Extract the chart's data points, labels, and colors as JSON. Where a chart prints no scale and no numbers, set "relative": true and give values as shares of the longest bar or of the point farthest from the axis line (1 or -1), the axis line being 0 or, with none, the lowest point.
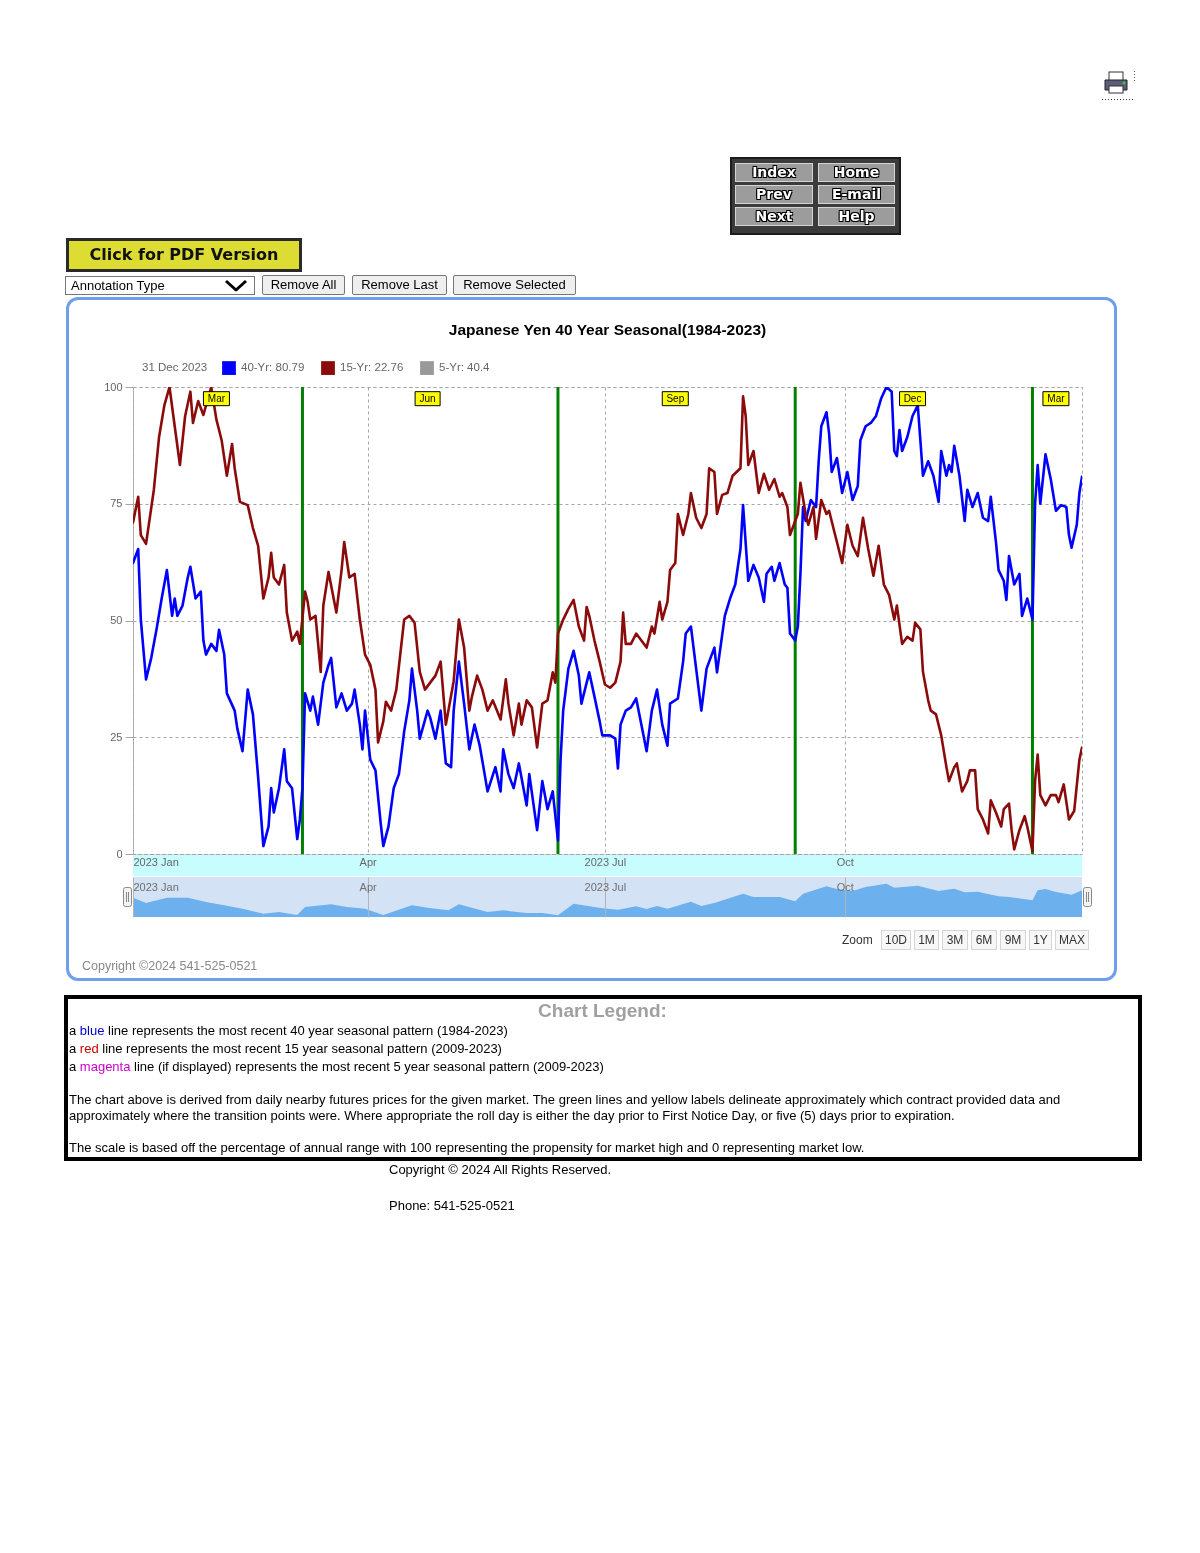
{
  "chart_data": [
    {
      "type": "line",
      "title": "Japanese Yen 40 Year Seasonal(1984-2023)",
      "legend_title": "31 Dec 2023",
      "legend": "top left",
      "series": [
        {
          "name": "40-Yr: 80.79",
          "color": "#0000ff",
          "x": [
            "2023-01-01",
            "2023-01-03",
            "2023-01-04",
            "2023-01-06",
            "2023-01-08",
            "2023-01-10",
            "2023-01-12",
            "2023-01-14",
            "2023-01-16",
            "2023-01-17",
            "2023-01-18",
            "2023-01-20",
            "2023-01-22",
            "2023-01-23",
            "2023-01-25",
            "2023-01-27",
            "2023-01-28",
            "2023-01-29",
            "2023-01-31",
            "2023-02-02",
            "2023-02-03",
            "2023-02-05",
            "2023-02-06",
            "2023-02-09",
            "2023-02-10",
            "2023-02-12",
            "2023-02-14",
            "2023-02-16",
            "2023-02-18",
            "2023-02-20",
            "2023-02-22",
            "2023-02-23",
            "2023-02-24",
            "2023-02-26",
            "2023-02-28",
            "2023-03-01",
            "2023-03-03",
            "2023-03-05",
            "2023-03-06",
            "2023-03-07",
            "2023-03-08",
            "2023-03-10",
            "2023-03-11",
            "2023-03-13",
            "2023-03-15",
            "2023-03-17",
            "2023-03-18",
            "2023-03-20",
            "2023-03-22",
            "2023-03-24",
            "2023-03-26",
            "2023-03-27",
            "2023-03-29",
            "2023-03-30",
            "2023-03-31",
            "2023-04-02",
            "2023-04-04",
            "2023-04-06",
            "2023-04-07",
            "2023-04-09",
            "2023-04-11",
            "2023-04-13",
            "2023-04-15",
            "2023-04-17",
            "2023-04-18",
            "2023-04-20",
            "2023-04-21",
            "2023-04-24",
            "2023-04-25",
            "2023-04-27",
            "2023-04-29",
            "2023-05-01",
            "2023-05-03",
            "2023-05-04",
            "2023-05-06",
            "2023-05-08",
            "2023-05-10",
            "2023-05-12",
            "2023-05-14",
            "2023-05-17",
            "2023-05-20",
            "2023-05-22",
            "2023-05-23",
            "2023-05-25",
            "2023-05-27",
            "2023-05-29",
            "2023-06-01",
            "2023-06-02",
            "2023-06-05",
            "2023-06-07",
            "2023-06-09",
            "2023-06-11",
            "2023-06-13",
            "2023-06-14",
            "2023-06-15",
            "2023-06-17",
            "2023-06-19",
            "2023-06-21",
            "2023-06-22",
            "2023-06-25",
            "2023-06-27",
            "2023-06-29",
            "2023-06-30",
            "2023-07-03",
            "2023-07-05",
            "2023-07-06",
            "2023-07-07",
            "2023-07-09",
            "2023-07-11",
            "2023-07-13",
            "2023-07-15",
            "2023-07-17",
            "2023-07-19",
            "2023-07-21",
            "2023-07-23",
            "2023-07-25",
            "2023-07-26",
            "2023-07-29",
            "2023-07-31",
            "2023-08-01",
            "2023-08-03",
            "2023-08-05",
            "2023-08-07",
            "2023-08-09",
            "2023-08-12",
            "2023-08-13",
            "2023-08-16",
            "2023-08-18",
            "2023-08-20",
            "2023-08-22",
            "2023-08-23",
            "2023-08-25",
            "2023-08-27",
            "2023-08-29",
            "2023-08-31",
            "2023-09-01",
            "2023-09-03",
            "2023-09-04",
            "2023-09-06",
            "2023-09-08",
            "2023-09-09",
            "2023-09-10",
            "2023-09-12",
            "2023-09-13",
            "2023-09-14",
            "2023-09-15",
            "2023-09-16",
            "2023-09-18",
            "2023-09-20",
            "2023-09-21",
            "2023-09-22",
            "2023-09-24",
            "2023-09-25",
            "2023-09-26",
            "2023-09-28",
            "2023-09-30",
            "2023-10-02",
            "2023-10-04",
            "2023-10-06",
            "2023-10-07",
            "2023-10-09",
            "2023-10-11",
            "2023-10-13",
            "2023-10-15",
            "2023-10-17",
            "2023-10-19",
            "2023-10-20",
            "2023-10-21",
            "2023-10-22",
            "2023-10-23",
            "2023-10-25",
            "2023-10-27",
            "2023-10-29",
            "2023-10-30",
            "2023-10-31",
            "2023-11-02",
            "2023-11-04",
            "2023-11-06",
            "2023-11-07",
            "2023-11-09",
            "2023-11-10",
            "2023-11-11",
            "2023-11-12",
            "2023-11-14",
            "2023-11-16",
            "2023-11-17",
            "2023-11-19",
            "2023-11-21",
            "2023-11-23",
            "2023-11-25",
            "2023-11-26",
            "2023-11-28",
            "2023-11-29",
            "2023-12-01",
            "2023-12-02",
            "2023-12-03",
            "2023-12-05",
            "2023-12-07",
            "2023-12-08",
            "2023-12-10",
            "2023-12-11",
            "2023-12-12",
            "2023-12-13",
            "2023-12-14",
            "2023-12-15",
            "2023-12-17",
            "2023-12-19",
            "2023-12-21",
            "2023-12-23",
            "2023-12-25",
            "2023-12-26",
            "2023-12-27",
            "2023-12-29",
            "2023-12-30",
            "2023-12-31"
          ],
          "values": [
            62.3,
            65.3,
            50.2,
            37.4,
            42,
            48,
            54.7,
            60.8,
            51,
            54.7,
            51,
            53.2,
            59.2,
            61.5,
            54.7,
            56.2,
            45.7,
            42.7,
            45,
            43.5,
            48,
            42.7,
            34.4,
            30.7,
            26.9,
            22,
            35.2,
            29.9,
            16.4,
            1.7,
            5.9,
            14.1,
            8.9,
            14.1,
            22.4,
            15.6,
            14.1,
            3.2,
            7.4,
            14.1,
            34.4,
            30.7,
            33.7,
            27.7,
            36.7,
            40.5,
            42,
            31.4,
            34.4,
            30.7,
            32.2,
            35.2,
            27.7,
            22.4,
            30.7,
            20.2,
            17.9,
            6.6,
            1.7,
            5.9,
            14.1,
            17.1,
            26.2,
            32.9,
            39.7,
            30.7,
            24.7,
            30.7,
            29.2,
            24.7,
            30.7,
            19.4,
            18.6,
            30.7,
            41.2,
            32.2,
            22.4,
            27.7,
            23.2,
            13.4,
            18.6,
            13.4,
            22.4,
            17.1,
            14.1,
            19.4,
            10.4,
            17.1,
            5.1,
            15.6,
            9.6,
            13.4,
            2.9,
            20.2,
            30.7,
            39.7,
            43.5,
            38.2,
            32.2,
            38.9,
            33.7,
            28.4,
            25.4,
            25.4,
            24.7,
            18.3,
            27.7,
            30.7,
            31.4,
            33.3,
            27.7,
            22,
            30.7,
            35.2,
            27.7,
            23.2,
            32.2,
            33.3,
            41.2,
            47.2,
            48.7,
            39.7,
            30.7,
            39.7,
            44.2,
            38.9,
            51,
            54.7,
            57.7,
            65.3,
            74.7,
            58.5,
            61.9,
            59.2,
            54,
            60,
            61.5,
            58.5,
            62.3,
            57.7,
            57,
            47.2,
            45.7,
            48.7,
            60,
            74.3,
            71.3,
            75.8,
            74.3,
            84.1,
            91.6,
            94.6,
            90,
            81.8,
            84.8,
            77.3,
            81.8,
            75.8,
            78.8,
            88.6,
            91.6,
            92.3,
            93.8,
            97.6,
            100,
            99,
            86.3,
            85.2,
            90.8,
            86.3,
            89.3,
            93.8,
            96.1,
            88.6,
            81,
            84.1,
            81,
            75.4,
            86.3,
            81,
            83.3,
            81.8,
            87.4,
            81,
            71.3,
            78,
            74.3,
            77.3,
            72,
            71.3,
            76.5,
            66.8,
            60.8,
            58.5,
            54.4,
            63.8,
            57.7,
            60,
            51,
            54.7,
            52.5,
            50.2,
            75,
            83.3,
            75,
            85.6,
            80.3,
            73.5,
            74.7,
            74.3,
            68.3,
            65.6,
            70.5,
            77.3,
            80.8
          ]
        },
        {
          "name": "15-Yr: 22.76",
          "color": "#8b0a0a",
          "x": [
            "2023-01-01",
            "2023-01-03",
            "2023-01-04",
            "2023-01-06",
            "2023-01-09",
            "2023-01-11",
            "2023-01-13",
            "2023-01-15",
            "2023-01-17",
            "2023-01-19",
            "2023-01-21",
            "2023-01-23",
            "2023-01-24",
            "2023-01-26",
            "2023-01-28",
            "2023-01-31",
            "2023-02-02",
            "2023-02-04",
            "2023-02-06",
            "2023-02-08",
            "2023-02-09",
            "2023-02-11",
            "2023-02-14",
            "2023-02-16",
            "2023-02-18",
            "2023-02-20",
            "2023-02-22",
            "2023-02-23",
            "2023-02-24",
            "2023-02-26",
            "2023-02-28",
            "2023-03-01",
            "2023-03-03",
            "2023-03-05",
            "2023-03-06",
            "2023-03-08",
            "2023-03-09",
            "2023-03-10",
            "2023-03-12",
            "2023-03-14",
            "2023-03-15",
            "2023-03-17",
            "2023-03-20",
            "2023-03-22",
            "2023-03-23",
            "2023-03-25",
            "2023-03-27",
            "2023-03-29",
            "2023-03-31",
            "2023-04-02",
            "2023-04-04",
            "2023-04-05",
            "2023-04-07",
            "2023-04-08",
            "2023-04-10",
            "2023-04-12",
            "2023-04-15",
            "2023-04-17",
            "2023-04-19",
            "2023-04-21",
            "2023-04-23",
            "2023-04-25",
            "2023-04-27",
            "2023-04-29",
            "2023-05-01",
            "2023-05-04",
            "2023-05-06",
            "2023-05-08",
            "2023-05-10",
            "2023-05-11",
            "2023-05-13",
            "2023-05-15",
            "2023-05-17",
            "2023-05-19",
            "2023-05-22",
            "2023-05-24",
            "2023-05-25",
            "2023-05-27",
            "2023-05-29",
            "2023-05-30",
            "2023-06-01",
            "2023-06-03",
            "2023-06-05",
            "2023-06-07",
            "2023-06-09",
            "2023-06-11",
            "2023-06-12",
            "2023-06-13",
            "2023-06-15",
            "2023-06-17",
            "2023-06-19",
            "2023-06-21",
            "2023-06-23",
            "2023-06-24",
            "2023-06-25",
            "2023-06-27",
            "2023-06-29",
            "2023-07-01",
            "2023-07-03",
            "2023-07-05",
            "2023-07-07",
            "2023-07-08",
            "2023-07-09",
            "2023-07-11",
            "2023-07-13",
            "2023-07-15",
            "2023-07-17",
            "2023-07-19",
            "2023-07-20",
            "2023-07-22",
            "2023-07-23",
            "2023-07-25",
            "2023-07-26",
            "2023-07-28",
            "2023-07-29",
            "2023-07-31",
            "2023-08-02",
            "2023-08-03",
            "2023-08-05",
            "2023-08-07",
            "2023-08-09",
            "2023-08-10",
            "2023-08-12",
            "2023-08-13",
            "2023-08-15",
            "2023-08-17",
            "2023-08-19",
            "2023-08-22",
            "2023-08-23",
            "2023-08-24",
            "2023-08-25",
            "2023-08-27",
            "2023-08-29",
            "2023-08-31",
            "2023-09-02",
            "2023-09-04",
            "2023-09-06",
            "2023-09-07",
            "2023-09-09",
            "2023-09-10",
            "2023-09-13",
            "2023-09-14",
            "2023-09-16",
            "2023-09-17",
            "2023-09-19",
            "2023-09-20",
            "2023-09-22",
            "2023-09-24",
            "2023-09-25",
            "2023-09-27",
            "2023-09-28",
            "2023-09-30",
            "2023-10-02",
            "2023-10-04",
            "2023-10-06",
            "2023-10-08",
            "2023-10-10",
            "2023-10-12",
            "2023-10-14",
            "2023-10-16",
            "2023-10-18",
            "2023-10-20",
            "2023-10-21",
            "2023-10-23",
            "2023-10-25",
            "2023-10-27",
            "2023-10-28",
            "2023-10-30",
            "2023-10-31",
            "2023-11-02",
            "2023-11-03",
            "2023-11-05",
            "2023-11-07",
            "2023-11-09",
            "2023-11-10",
            "2023-11-12",
            "2023-11-13",
            "2023-11-15",
            "2023-11-17",
            "2023-11-18",
            "2023-11-20",
            "2023-11-21",
            "2023-11-23",
            "2023-11-25",
            "2023-11-26",
            "2023-11-28",
            "2023-11-30",
            "2023-12-01",
            "2023-12-03",
            "2023-12-04",
            "2023-12-05",
            "2023-12-07",
            "2023-12-09",
            "2023-12-10",
            "2023-12-12",
            "2023-12-13",
            "2023-12-14",
            "2023-12-15",
            "2023-12-17",
            "2023-12-19",
            "2023-12-21",
            "2023-12-22",
            "2023-12-24",
            "2023-12-26",
            "2023-12-28",
            "2023-12-30",
            "2023-12-31"
          ],
          "values": [
            71,
            76.5,
            68.3,
            66.4,
            78,
            89.3,
            96,
            100,
            91.6,
            83.3,
            93.8,
            99,
            92.3,
            97,
            94,
            100,
            93,
            88.6,
            81,
            87.8,
            82.6,
            75.4,
            74.7,
            69.8,
            66,
            54.7,
            59.2,
            64.5,
            59.2,
            57.7,
            61.9,
            51.7,
            45.7,
            47.6,
            45,
            56.2,
            54,
            50.2,
            51,
            39,
            53.2,
            60.4,
            51.7,
            60.8,
            66.8,
            59.2,
            60,
            50.2,
            42.7,
            40.5,
            35.2,
            23.9,
            28.4,
            32.6,
            30.7,
            35.2,
            50.2,
            51,
            49.5,
            39,
            35.2,
            36.7,
            38.2,
            41.2,
            27.7,
            37,
            50.2,
            44.2,
            30.7,
            33.7,
            38.2,
            35.2,
            30.7,
            32.9,
            28.8,
            37.4,
            32.2,
            25.4,
            32.2,
            27.7,
            32.9,
            31.4,
            22.8,
            32.2,
            32.9,
            38.9,
            36.7,
            47.2,
            50.2,
            52.5,
            54.4,
            48.7,
            45.7,
            52.9,
            51,
            45.7,
            41.2,
            36.3,
            35.6,
            36.7,
            41.2,
            51.7,
            45,
            45,
            47.2,
            45.7,
            44.2,
            48.7,
            47.2,
            54,
            50.2,
            54,
            60.8,
            62.3,
            72.8,
            68.3,
            72.8,
            77.3,
            72,
            69.8,
            72.8,
            82.6,
            81.8,
            72.8,
            76.9,
            77.3,
            81,
            82.6,
            98,
            93.8,
            83.3,
            86.3,
            77.3,
            81.4,
            78,
            80.3,
            76.5,
            77.3,
            74.3,
            68.3,
            72.8,
            79.5,
            72.8,
            70.5,
            74.3,
            67.5,
            75.8,
            72.8,
            73.5,
            69,
            66.8,
            62.3,
            70.5,
            66,
            63.8,
            72,
            65.3,
            59.6,
            66,
            57.7,
            55.5,
            50.2,
            53.2,
            45,
            46.5,
            45.7,
            49.5,
            48.1,
            39,
            32.9,
            30.7,
            29.9,
            25.4,
            18.6,
            15.6,
            18.6,
            19.4,
            13.4,
            15.6,
            17.9,
            17.9,
            9.6,
            7.4,
            4.4,
            11.5,
            8.9,
            5.9,
            9.6,
            10.8,
            5.1,
            1,
            5.1,
            8.1,
            5.9,
            0.6,
            15.6,
            21.3,
            12.6,
            10.4,
            12.6,
            12.6,
            11.1,
            14.9,
            7.4,
            9.2,
            20.2,
            22.8
          ]
        },
        {
          "name": "5-Yr: 40.4",
          "color": "#999999"
        }
      ],
      "xlim": [
        "2023-01-01",
        "2023-12-31"
      ],
      "xticks": [
        {
          "value": "2023-01-01",
          "label": "2023 Jan"
        },
        {
          "value": "2023-04-01",
          "label": "Apr"
        },
        {
          "value": "2023-07-01",
          "label": "2023 Jul"
        },
        {
          "value": "2023-10-01",
          "label": "Oct"
        }
      ],
      "ylim": [
        0,
        100
      ],
      "yticks": [
        0,
        25,
        50,
        75,
        100
      ],
      "grid": true,
      "ref_lines": [
        {
          "axis": "x",
          "value": "2023-03-07",
          "label": null,
          "color": "#008000"
        },
        {
          "axis": "x",
          "value": "2023-06-13",
          "label": null,
          "color": "#008000"
        },
        {
          "axis": "x",
          "value": "2023-09-12",
          "label": null,
          "color": "#008000"
        },
        {
          "axis": "x",
          "value": "2023-12-12",
          "label": null,
          "color": "#008000"
        }
      ],
      "annotations": [
        "Index",
        "Home",
        "Prev",
        "E-mail",
        "Next",
        "Help",
        "Click for PDF Version",
        "Annotation Type",
        "Remove All",
        "Remove Last",
        "Remove Selected",
        "Zoom",
        "10D",
        "1M",
        "3M",
        "6M",
        "9M",
        "1Y",
        "MAX",
        "Copyright ©2024 541-525-0521",
        "Chart Legend:",
        "a blue line represents the most recent 40 year seasonal pattern (1984-2023)",
        "a red line represents the most recent 15 year seasonal pattern (2009-2023)",
        "a magenta line (if displayed) represents the most recent 5 year seasonal pattern (2009-2023)",
        "The chart above is derived from daily nearby futures prices for the given market. The green lines and yellow labels delineate approximately which contract provided data and approximately where the transition points were. Where appropriate the roll day is either the day prior to First Notice Day, or five (5) days prior to expiration.",
        "The scale is based off the percentage of annual range with 100 representing the propensity for market high and 0 representing market low.",
        "Copyright © 2024 All Rights Reserved.",
        "Phone: 541-525-0521",
        {
          "text": "Mar",
          "x": "2023-02-02",
          "y": 97.5
        },
        {
          "text": "Jun",
          "x": "2023-04-24",
          "y": 97.5
        },
        {
          "text": "Sep",
          "x": "2023-07-28",
          "y": 97.5
        },
        {
          "text": "Dec",
          "x": "2023-10-27",
          "y": 97.5
        },
        {
          "text": "Mar",
          "x": "2023-12-21",
          "y": 97.5
        }
      ]
    },
    {
      "type": "area",
      "relative": true,
      "color": "#6cb0ee",
      "x": [
        "2023-01-01",
        "2023-01-06",
        "2023-01-14",
        "2023-01-22",
        "2023-01-29",
        "2023-02-06",
        "2023-02-12",
        "2023-02-20",
        "2023-02-26",
        "2023-03-05",
        "2023-03-08",
        "2023-03-18",
        "2023-03-24",
        "2023-03-31",
        "2023-04-07",
        "2023-04-18",
        "2023-04-24",
        "2023-05-02",
        "2023-05-06",
        "2023-05-17",
        "2023-05-23",
        "2023-06-01",
        "2023-06-07",
        "2023-06-13",
        "2023-06-19",
        "2023-06-30",
        "2023-07-06",
        "2023-07-13",
        "2023-07-17",
        "2023-07-21",
        "2023-07-25",
        "2023-08-03",
        "2023-08-07",
        "2023-08-12",
        "2023-08-23",
        "2023-08-27",
        "2023-09-06",
        "2023-09-12",
        "2023-09-15",
        "2023-09-24",
        "2023-09-28",
        "2023-10-04",
        "2023-10-09",
        "2023-10-17",
        "2023-10-20",
        "2023-10-29",
        "2023-11-06",
        "2023-11-12",
        "2023-11-16",
        "2023-11-21",
        "2023-11-29",
        "2023-12-03",
        "2023-12-12",
        "2023-12-14",
        "2023-12-17",
        "2023-12-21",
        "2023-12-27",
        "2023-12-31"
      ],
      "values": [
        0.58,
        0.42,
        0.58,
        0.58,
        0.45,
        0.34,
        0.25,
        0.1,
        0.15,
        0.06,
        0.3,
        0.38,
        0.3,
        0.25,
        0.06,
        0.35,
        0.28,
        0.2,
        0.38,
        0.15,
        0.2,
        0.12,
        0.12,
        0.05,
        0.4,
        0.26,
        0.22,
        0.32,
        0.24,
        0.33,
        0.25,
        0.46,
        0.33,
        0.42,
        0.7,
        0.6,
        0.6,
        0.47,
        0.7,
        0.92,
        0.84,
        0.78,
        0.9,
        1,
        0.88,
        0.94,
        0.78,
        0.85,
        0.74,
        0.76,
        0.62,
        0.6,
        0.5,
        0.8,
        0.84,
        0.75,
        0.67,
        0.8
      ],
      "bands": [
        {
          "axis": "x",
          "from": "2023-01-01",
          "to": "2023-12-31",
          "color": "#d3e2f4"
        }
      ],
      "xlim": [
        "2023-01-01",
        "2023-12-31"
      ],
      "xticks": [
        {
          "value": "2023-01-01",
          "label": "2023 Jan"
        },
        {
          "value": "2023-04-01",
          "label": "Apr"
        },
        {
          "value": "2023-07-01",
          "label": "2023 Jul"
        },
        {
          "value": "2023-10-01",
          "label": "Oct"
        }
      ],
      "grid": "x",
      "tick_labels": "x"
    }
  ]
}
